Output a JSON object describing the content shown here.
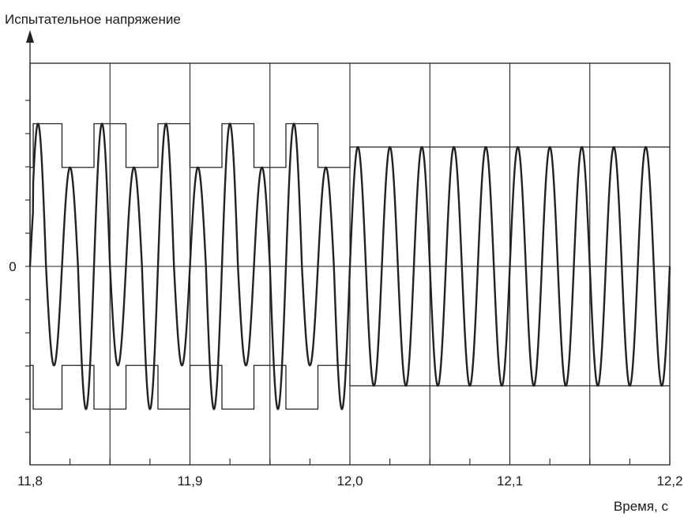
{
  "chart_data": {
    "type": "line",
    "ylabel": "Испытательное напряжение",
    "xlabel": "Время, с",
    "xlim": [
      11.8,
      12.2
    ],
    "ylim": [
      -1.2,
      1.2
    ],
    "x_ticks": [
      "11,8",
      "11,9",
      "12,0",
      "12,1",
      "12,2"
    ],
    "y_ticks": [
      "0"
    ],
    "grid": true,
    "signal": {
      "description_free": true,
      "phase1_x": [
        11.8,
        12.0
      ],
      "phase1_frequency": 50,
      "phase1_amplitude_levels": [
        0.98,
        0.68
      ],
      "phase2_x": [
        12.0,
        12.2
      ],
      "phase2_frequency": 50,
      "phase2_amplitude": 0.82
    },
    "envelope": {
      "phase1_steps": [
        {
          "x": [
            11.8,
            11.802
          ],
          "level": 0.68
        },
        {
          "x": [
            11.802,
            11.82
          ],
          "level": 0.98
        },
        {
          "x": [
            11.82,
            11.84
          ],
          "level": 0.68
        },
        {
          "x": [
            11.84,
            11.86
          ],
          "level": 0.98
        },
        {
          "x": [
            11.86,
            11.88
          ],
          "level": 0.68
        },
        {
          "x": [
            11.88,
            11.9
          ],
          "level": 0.98
        },
        {
          "x": [
            11.9,
            11.92
          ],
          "level": 0.68
        },
        {
          "x": [
            11.92,
            11.94
          ],
          "level": 0.98
        },
        {
          "x": [
            11.94,
            11.96
          ],
          "level": 0.68
        },
        {
          "x": [
            11.96,
            11.98
          ],
          "level": 0.98
        },
        {
          "x": [
            11.98,
            12.0
          ],
          "level": 0.68
        }
      ],
      "phase2_level": 0.82
    }
  }
}
